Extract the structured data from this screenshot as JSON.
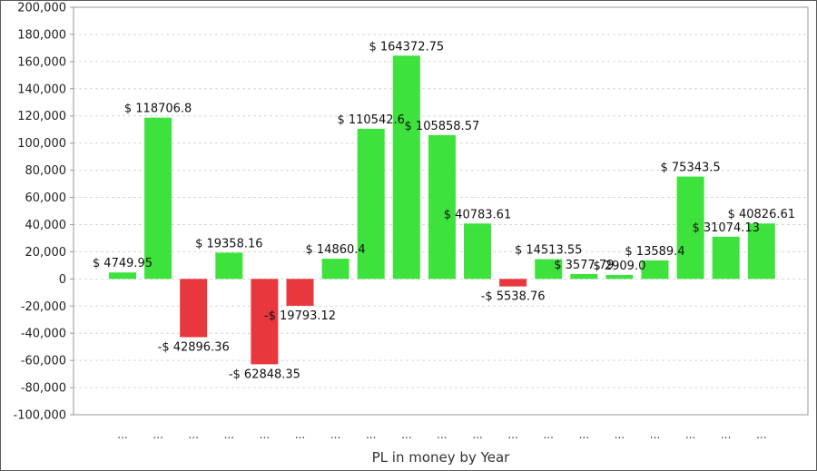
{
  "chart_data": {
    "type": "bar",
    "xlabel": "PL in money by Year",
    "ylabel": "",
    "ylim": [
      -100000,
      200000
    ],
    "yticks": [
      -100000,
      -80000,
      -60000,
      -40000,
      -20000,
      0,
      20000,
      40000,
      60000,
      80000,
      100000,
      120000,
      140000,
      160000,
      180000,
      200000
    ],
    "ytick_labels": [
      "-100,000",
      "-80,000",
      "-60,000",
      "-40,000",
      "-20,000",
      "0",
      "20,000",
      "40,000",
      "60,000",
      "80,000",
      "100,000",
      "120,000",
      "140,000",
      "160,000",
      "180,000",
      "200,000"
    ],
    "categories": [
      "...",
      "...",
      "...",
      "...",
      "...",
      "...",
      "...",
      "...",
      "...",
      "...",
      "...",
      "...",
      "...",
      "...",
      "...",
      "...",
      "...",
      "...",
      "..."
    ],
    "values": [
      4749.95,
      118706.8,
      -42896.36,
      19358.16,
      -62848.35,
      -19793.12,
      14860.4,
      110542.6,
      164372.75,
      105858.57,
      40783.61,
      -5538.76,
      14513.55,
      3577.79,
      2909.0,
      13589.4,
      75343.5,
      31074.13,
      40826.61
    ],
    "data_labels": [
      "$ 4749.95",
      "$ 118706.8",
      "-$ 42896.36",
      "$ 19358.16",
      "-$ 62848.35",
      "-$ 19793.12",
      "$ 14860.4",
      "$ 110542.6",
      "$ 164372.75",
      "$ 105858.57",
      "$ 40783.61",
      "-$ 5538.76",
      "$ 14513.55",
      "$ 3577.79",
      "$ 2909.0",
      "$ 13589.4",
      "$ 75343.5",
      "$ 31074.13",
      "$ 40826.61"
    ],
    "grid": true,
    "colors": {
      "positive": "#3de23d",
      "negative": "#e8383e",
      "grid": "#d6d6d6",
      "axis": "#9a9a9a"
    }
  }
}
